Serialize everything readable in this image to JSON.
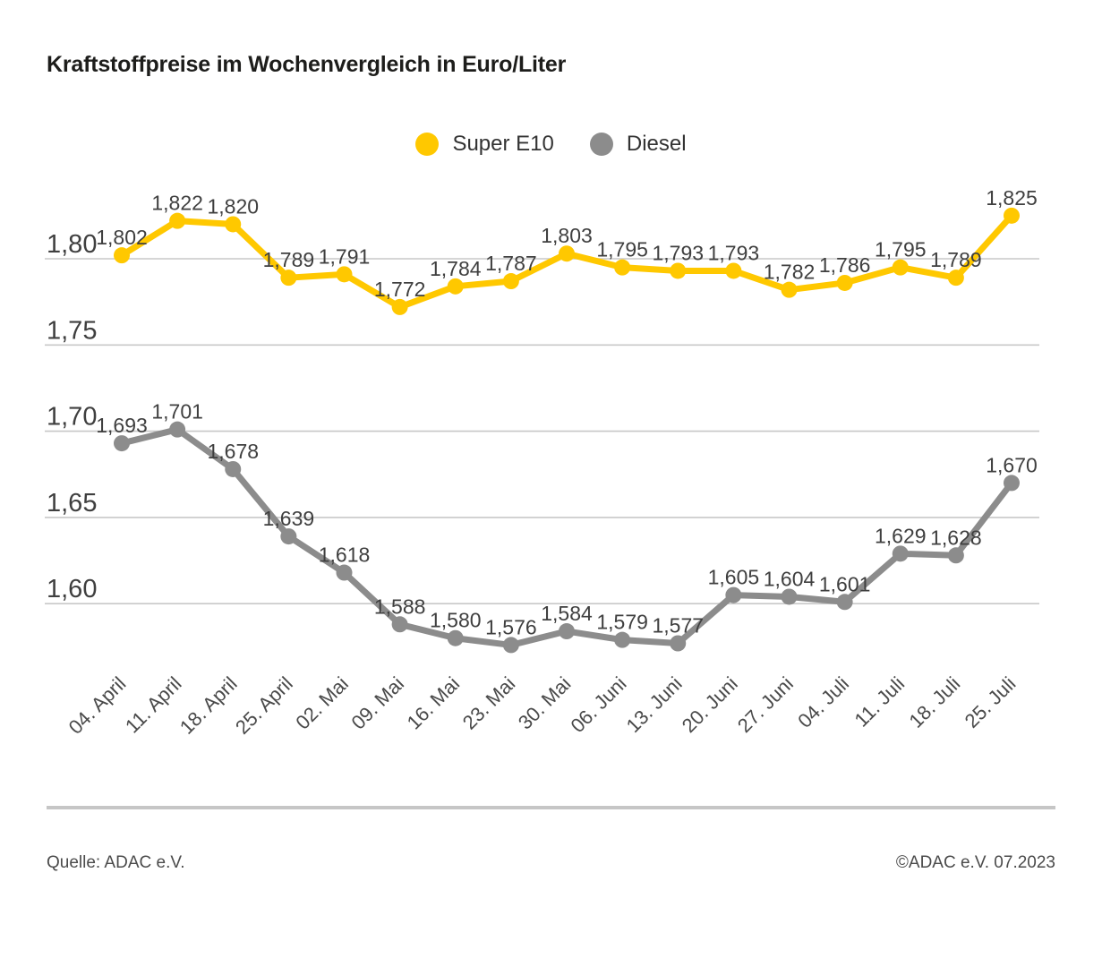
{
  "title": "Kraftstoffpreise im Wochenvergleich in Euro/Liter",
  "footer": {
    "source": "Quelle: ADAC e.V.",
    "copyright": "©ADAC e.V. 07.2023"
  },
  "colors": {
    "super_e10": "#FFC800",
    "diesel": "#8C8C8C",
    "grid": "#C8C8C8",
    "data_label": "#3F3F3F",
    "axis_label": "#3F3F3F",
    "title": "#1D1D1B",
    "divider": "#C6C6C6"
  },
  "chart_data": {
    "type": "line",
    "title": "Kraftstoffpreise im Wochenvergleich in Euro/Liter",
    "xlabel": "",
    "ylabel": "",
    "grid": true,
    "legend_position": "top-center",
    "ylim": [
      1.545,
      1.845
    ],
    "categories": [
      "04. April",
      "11. April",
      "18. April",
      "25. April",
      "02. Mai",
      "09. Mai",
      "16. Mai",
      "23. Mai",
      "30. Mai",
      "06. Juni",
      "13. Juni",
      "20. Juni",
      "27. Juni",
      "04. Juli",
      "11. Juli",
      "18. Juli",
      "25. Juli"
    ],
    "yticks": [
      {
        "value": 1.8,
        "label": "1,80"
      },
      {
        "value": 1.75,
        "label": "1,75"
      },
      {
        "value": 1.7,
        "label": "1,70"
      },
      {
        "value": 1.65,
        "label": "1,65"
      },
      {
        "value": 1.6,
        "label": "1,60"
      }
    ],
    "series": [
      {
        "name": "Super E10",
        "color": "#FFC800",
        "values": [
          1.802,
          1.822,
          1.82,
          1.789,
          1.791,
          1.772,
          1.784,
          1.787,
          1.803,
          1.795,
          1.793,
          1.793,
          1.782,
          1.786,
          1.795,
          1.789,
          1.825
        ],
        "labels": [
          "1,802",
          "1,822",
          "1,820",
          "1,789",
          "1,791",
          "1,772",
          "1,784",
          "1,787",
          "1,803",
          "1,795",
          "1,793",
          "1,793",
          "1,782",
          "1,786",
          "1,795",
          "1,789",
          "1,825"
        ]
      },
      {
        "name": "Diesel",
        "color": "#8C8C8C",
        "values": [
          1.693,
          1.701,
          1.678,
          1.639,
          1.618,
          1.588,
          1.58,
          1.576,
          1.584,
          1.579,
          1.577,
          1.605,
          1.604,
          1.601,
          1.629,
          1.628,
          1.67
        ],
        "labels": [
          "1,693",
          "1,701",
          "1,678",
          "1,639",
          "1,618",
          "1,588",
          "1,580",
          "1,576",
          "1,584",
          "1,579",
          "1,577",
          "1,605",
          "1,604",
          "1,601",
          "1,629",
          "1,628",
          "1,670"
        ]
      }
    ]
  }
}
